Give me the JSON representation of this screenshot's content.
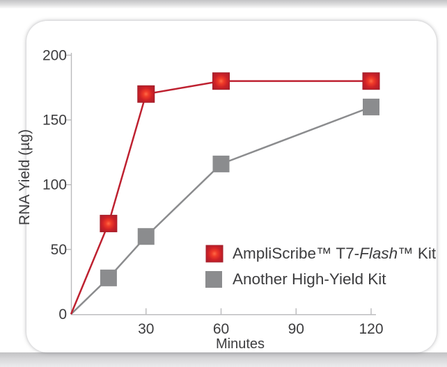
{
  "chart_data": {
    "type": "line",
    "title": "",
    "xlabel": "Minutes",
    "ylabel": "RNA Yield (µg)",
    "x": [
      0,
      15,
      30,
      60,
      120
    ],
    "xlim": [
      0,
      122
    ],
    "ylim": [
      0,
      200
    ],
    "x_ticks": [
      30,
      60,
      90,
      120
    ],
    "y_ticks": [
      0,
      50,
      100,
      150,
      200
    ],
    "grid": false,
    "legend_position": "inside-lower-right",
    "series": [
      {
        "name": "AmpliScribe™ T7-Flash™ Kit",
        "values": [
          0,
          70,
          170,
          180,
          180
        ],
        "color": "#be2130",
        "marker": "square",
        "marker_style": "glow"
      },
      {
        "name": "Another High-Yield Kit",
        "values": [
          0,
          28,
          60,
          116,
          160
        ],
        "color": "#8b8c8e",
        "marker": "square",
        "marker_style": "flat"
      }
    ]
  },
  "legend": {
    "items": [
      {
        "prefix": "AmpliScribe™ T7-",
        "italic": "Flash",
        "suffix": "™ Kit",
        "swatch_color": "#be2130"
      },
      {
        "prefix": "",
        "italic": "",
        "suffix": "Another High-Yield Kit",
        "swatch_color": "#8b8c8e"
      }
    ]
  },
  "colors": {
    "axis": "#b9b9bb",
    "text": "#3d3d3f",
    "red_line": "#be2130",
    "red_marker_edge": "#a51e29",
    "red_marker_center": "#ff6a45",
    "gray": "#8b8c8e",
    "card_background": "#ffffff"
  }
}
